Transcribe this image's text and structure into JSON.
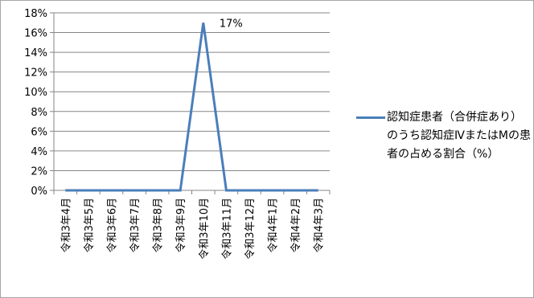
{
  "chart_data": {
    "type": "line",
    "categories": [
      "令和3年4月",
      "令和3年5月",
      "令和3年6月",
      "令和3年7月",
      "令和3年8月",
      "令和3年9月",
      "令和3年10月",
      "令和3年11月",
      "令和3年12月",
      "令和4年1月",
      "令和4年2月",
      "令和4年3月"
    ],
    "series": [
      {
        "name": "認知症患者（合併症あり）のうち認知症ⅣまたはMの患者の占める割合（%）",
        "values": [
          0,
          0,
          0,
          0,
          0,
          0,
          17,
          0,
          0,
          0,
          0,
          0
        ],
        "color": "#4a7ebb"
      }
    ],
    "data_labels": [
      {
        "index": 6,
        "text": "17%"
      }
    ],
    "ylim": [
      0,
      18
    ],
    "yticks": [
      "0%",
      "2%",
      "4%",
      "6%",
      "8%",
      "10%",
      "12%",
      "14%",
      "16%",
      "18%"
    ],
    "grid": true,
    "legend_position": "right"
  }
}
